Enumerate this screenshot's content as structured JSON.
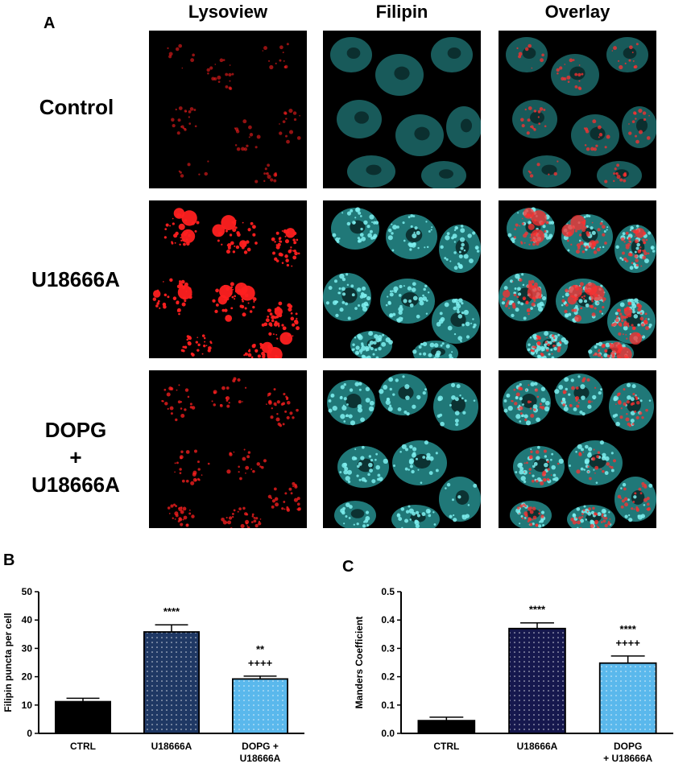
{
  "figure": {
    "panel_a_letter": "A",
    "panel_b_letter": "B",
    "panel_c_letter": "C",
    "columns": [
      "Lysoview",
      "Filipin",
      "Overlay"
    ],
    "rows": [
      {
        "label_lines": [
          "Control"
        ],
        "intensity": 0.25
      },
      {
        "label_lines": [
          "U18666A"
        ],
        "intensity": 1.0
      },
      {
        "label_lines": [
          "DOPG",
          "+",
          "U18666A"
        ],
        "intensity": 0.6
      }
    ],
    "colors": {
      "lysoview": "#ff2020",
      "filipin": "#35c8c8",
      "overlay_red": "#ff3030"
    }
  },
  "chart_data": [
    {
      "type": "bar",
      "id": "B",
      "categories": [
        [
          "CTRL"
        ],
        [
          "U18666A"
        ],
        [
          "DOPG +",
          "U18666A"
        ]
      ],
      "values": [
        11.2,
        35.8,
        19.2
      ],
      "errors": [
        1.2,
        2.5,
        1.0
      ],
      "annotations": [
        [],
        [
          "****"
        ],
        [
          "**",
          "++++"
        ]
      ],
      "ylabel": "Filipin puncta per cell",
      "ylim": [
        0,
        50
      ],
      "yticks": [
        0,
        10,
        20,
        30,
        40,
        50
      ],
      "tick_labels": [
        "0",
        "10",
        "20",
        "30",
        "40",
        "50"
      ],
      "bar_colors": [
        "#000000",
        "#1f3864",
        "#5ab8ec"
      ],
      "bar_patterns": [
        "solid",
        "dots",
        "dots"
      ]
    },
    {
      "type": "bar",
      "id": "C",
      "categories": [
        [
          "CTRL"
        ],
        [
          "U18666A"
        ],
        [
          "DOPG",
          "+ U18666A"
        ]
      ],
      "values": [
        0.045,
        0.37,
        0.248
      ],
      "errors": [
        0.012,
        0.02,
        0.025
      ],
      "annotations": [
        [],
        [
          "****"
        ],
        [
          "****",
          "++++"
        ]
      ],
      "ylabel": "Manders Coefficient",
      "ylim": [
        0,
        0.5
      ],
      "yticks": [
        0,
        0.1,
        0.2,
        0.3,
        0.4,
        0.5
      ],
      "tick_labels": [
        "0.0",
        "0.1",
        "0.2",
        "0.3",
        "0.4",
        "0.5"
      ],
      "bar_colors": [
        "#000000",
        "#16184e",
        "#5ab8ec"
      ],
      "bar_patterns": [
        "solid",
        "dots",
        "dots"
      ]
    }
  ]
}
